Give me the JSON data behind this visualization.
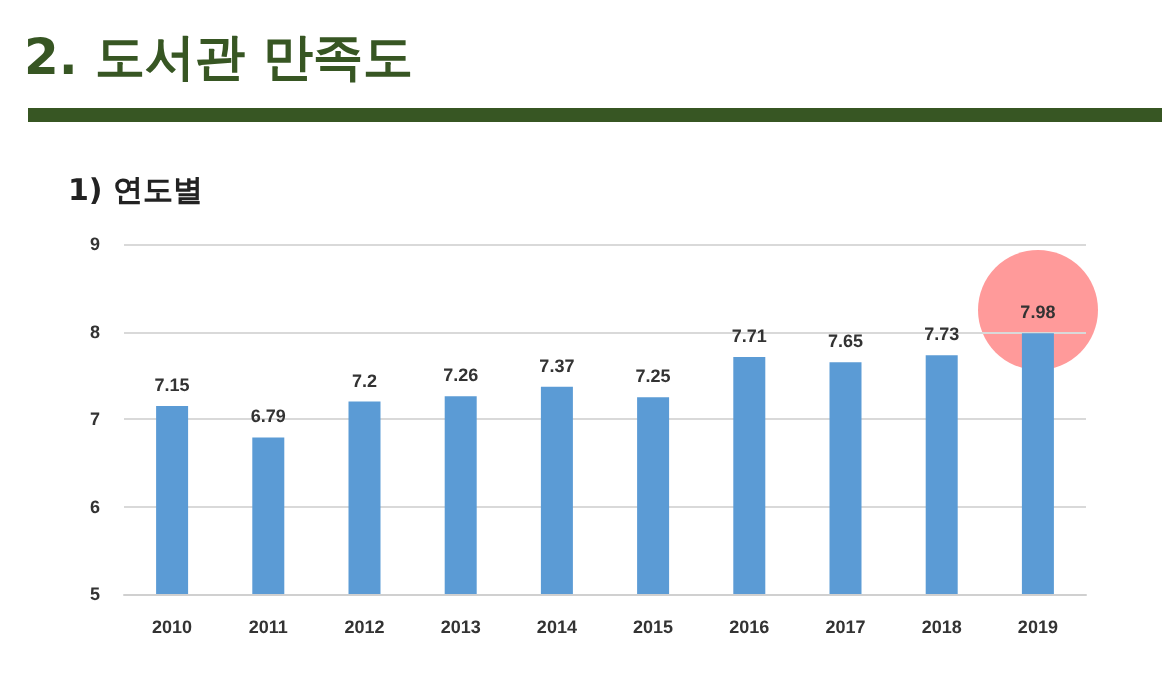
{
  "chart_data": {
    "type": "bar",
    "title": "2. 도서관 만족도",
    "subtitle": "1) 연도별",
    "categories": [
      "2010",
      "2011",
      "2012",
      "2013",
      "2014",
      "2015",
      "2016",
      "2017",
      "2018",
      "2019"
    ],
    "values": [
      7.15,
      6.79,
      7.2,
      7.26,
      7.37,
      7.25,
      7.71,
      7.65,
      7.73,
      7.98
    ],
    "color": "#5b9bd5",
    "ylim": [
      5,
      9
    ],
    "yticks": [
      5,
      6,
      7,
      8,
      9
    ],
    "grid": "y",
    "data_labels": true
  }
}
